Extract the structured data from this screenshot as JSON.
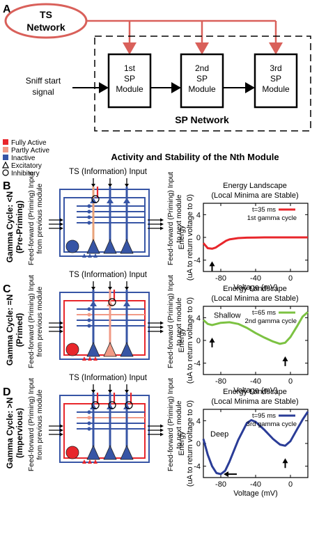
{
  "panel_a": {
    "label": "A",
    "ts_network": [
      "TS",
      "Network"
    ],
    "sniff": [
      "Sniff start",
      "signal"
    ],
    "modules": [
      [
        "1st",
        "SP",
        "Module"
      ],
      [
        "2nd",
        "SP",
        "Module"
      ],
      [
        "3rd",
        "SP",
        "Module"
      ]
    ],
    "sp_network": "SP Network"
  },
  "legend": {
    "fully_active": "Fully Active",
    "partly_active": "Partly Active",
    "inactive": "Inactive",
    "excitatory": "Excitatory",
    "inhibitory": "Inhibitory"
  },
  "section_title": "Activity and Stability of the Nth Module",
  "common": {
    "ts_input": "TS (Information) Input",
    "ff_prev": [
      "Feed-forward (Priming) Input",
      "from previous module"
    ],
    "ff_next": [
      "Feed-forward (Priming) Input",
      "to next module"
    ],
    "energy_title": [
      "Energy Landscape",
      "(Local Minima are Stable)"
    ],
    "ylabel": [
      "Energy",
      "(uA to return voltage to 0)"
    ],
    "xlabel": "Voltage (mV)"
  },
  "rows": [
    {
      "label": "B",
      "cycle": [
        "Gamma Cycle: <N",
        "(Pre-Priming)"
      ],
      "legend_time": "t=35 ms",
      "legend_cycle": "1st gamma cycle",
      "color": "#e8262b",
      "annotation": "",
      "yticks": [
        "4",
        "0",
        "-4"
      ],
      "xticks": [
        "-80",
        "-40",
        "0"
      ]
    },
    {
      "label": "C",
      "cycle": [
        "Gamma Cycle: =N",
        "(Primed)"
      ],
      "legend_time": "t=65 ms",
      "legend_cycle": "2nd gamma cycle",
      "color": "#7cc242",
      "annotation": "Shallow",
      "yticks": [
        "4",
        "0",
        "-4"
      ],
      "xticks": [
        "-80",
        "-40",
        "0"
      ]
    },
    {
      "label": "D",
      "cycle": [
        "Gamma Cycle: >N",
        "(Impervious)"
      ],
      "legend_time": "t=95 ms",
      "legend_cycle": "3rd gamma cycle",
      "color": "#2a3c97",
      "annotation": "Deep",
      "yticks": [
        "4",
        "0",
        "-4"
      ],
      "xticks": [
        "-80",
        "-40",
        "0"
      ]
    }
  ],
  "chart_data": [
    {
      "type": "line",
      "xlabel": "Voltage (mV)",
      "ylabel": "Energy (uA to return voltage to 0)",
      "xlim": [
        -100,
        20
      ],
      "ylim": [
        -6,
        6
      ],
      "series": [
        {
          "name": "t=35 ms",
          "color": "#e8262b",
          "x": [
            -100,
            -95,
            -90,
            -86,
            -82,
            -78,
            -74,
            -70,
            -60,
            -50,
            -40,
            -30,
            -20,
            -10,
            0,
            10,
            20
          ],
          "y": [
            -1.0,
            -1.9,
            -2.0,
            -1.8,
            -1.4,
            -1.0,
            -0.6,
            -0.35,
            -0.12,
            -0.05,
            -0.02,
            0,
            0,
            0,
            0,
            0,
            0
          ]
        }
      ]
    },
    {
      "type": "line",
      "xlabel": "Voltage (mV)",
      "ylabel": "Energy (uA to return voltage to 0)",
      "xlim": [
        -100,
        20
      ],
      "ylim": [
        -6,
        6
      ],
      "series": [
        {
          "name": "t=65 ms",
          "color": "#7cc242",
          "x": [
            -100,
            -95,
            -90,
            -85,
            -80,
            -70,
            -60,
            -50,
            -40,
            -30,
            -20,
            -12,
            -6,
            0,
            8,
            14,
            20
          ],
          "y": [
            3.6,
            2.9,
            2.7,
            2.9,
            3.1,
            3.2,
            2.9,
            2.2,
            1.3,
            0.5,
            -0.2,
            -0.6,
            -0.4,
            0.6,
            2.6,
            4.2,
            5.0
          ]
        }
      ]
    },
    {
      "type": "line",
      "xlabel": "Voltage (mV)",
      "ylabel": "Energy (uA to return voltage to 0)",
      "xlim": [
        -100,
        20
      ],
      "ylim": [
        -6,
        6
      ],
      "series": [
        {
          "name": "t=95 ms",
          "color": "#2a3c97",
          "x": [
            -100,
            -95,
            -90,
            -85,
            -80,
            -75,
            -70,
            -60,
            -50,
            -45,
            -40,
            -30,
            -20,
            -12,
            -6,
            0,
            8,
            14,
            20
          ],
          "y": [
            0.8,
            -2.0,
            -4.0,
            -5.2,
            -5.4,
            -4.8,
            -3.2,
            0.6,
            3.6,
            4.1,
            3.8,
            2.4,
            0.8,
            -0.2,
            -0.4,
            0.4,
            2.6,
            4.2,
            5.6
          ]
        }
      ]
    }
  ]
}
